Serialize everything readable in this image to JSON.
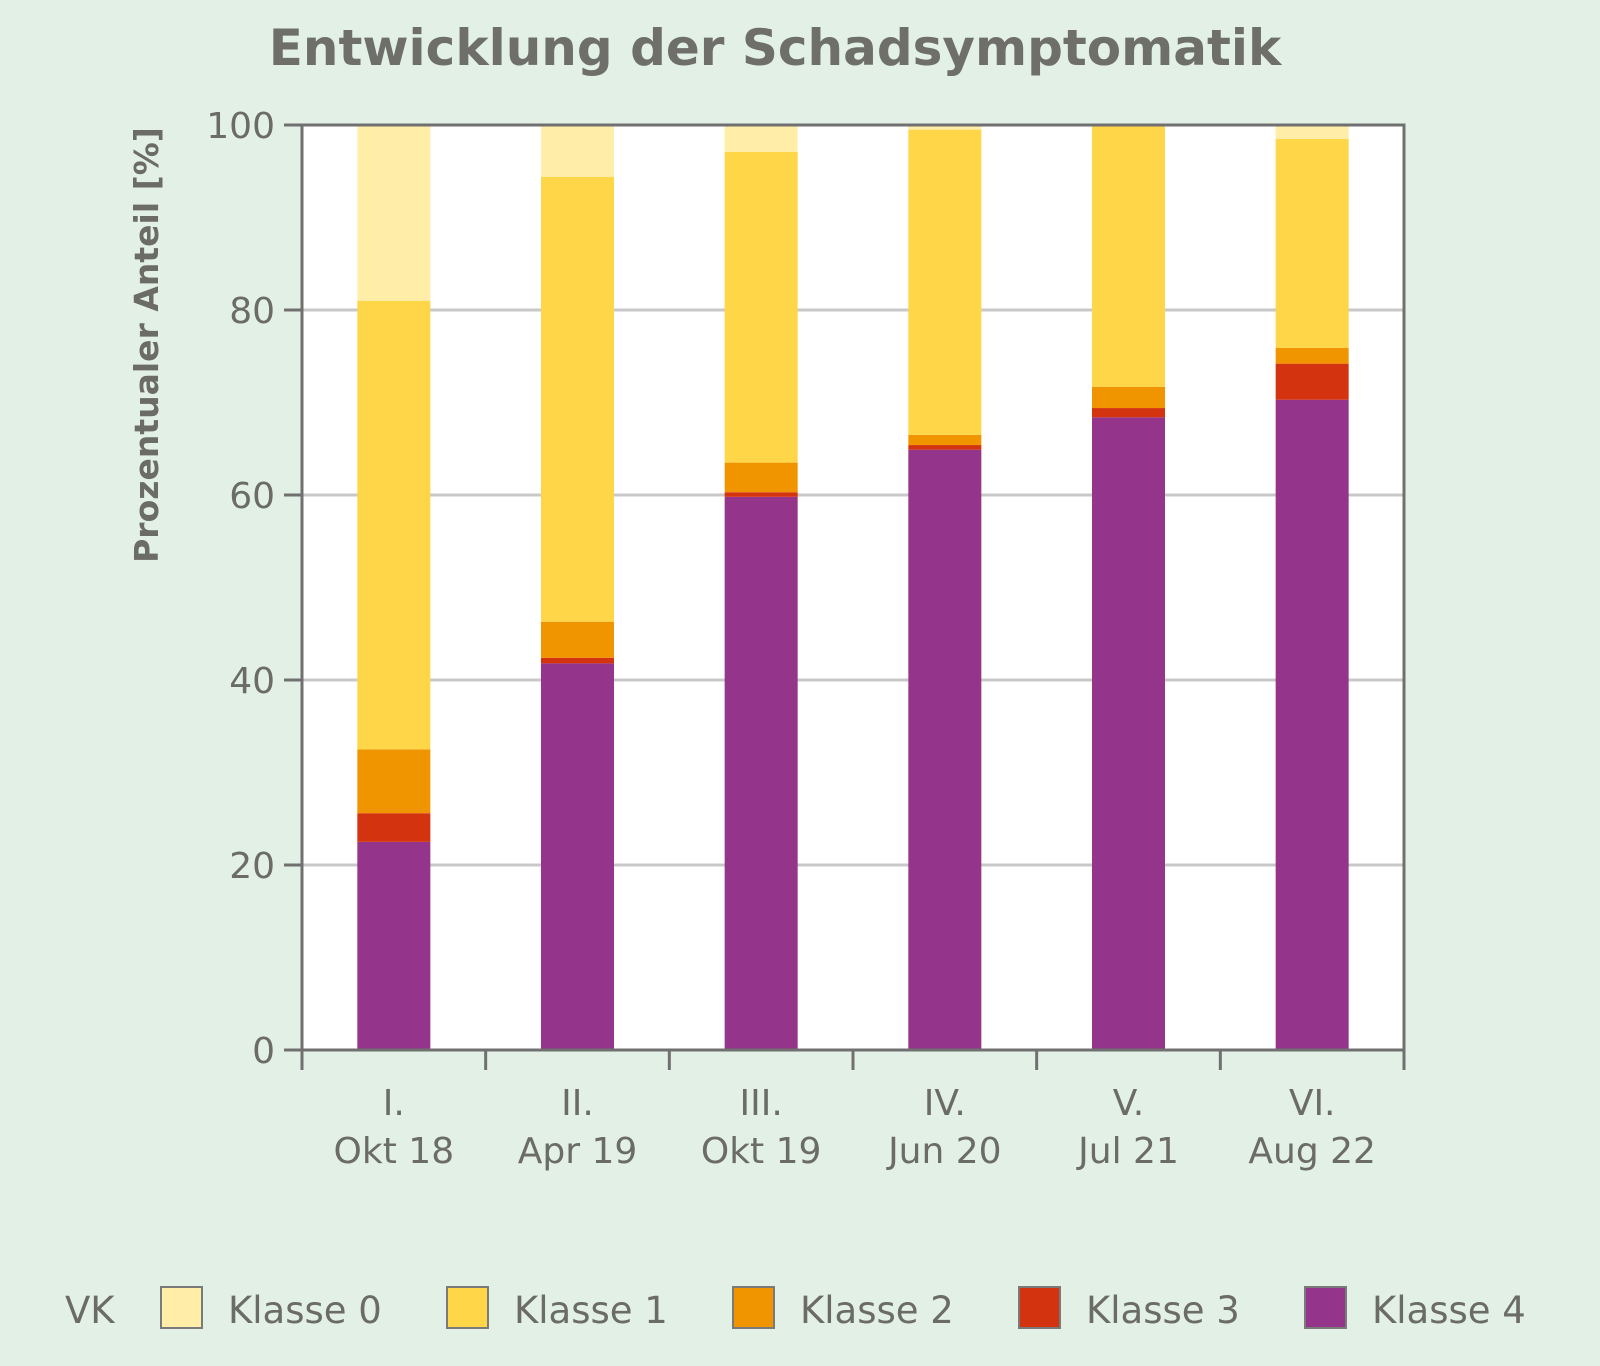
{
  "chart_data": {
    "type": "bar",
    "stacked": true,
    "title": "Entwicklung der Schadsymptomatik",
    "ylabel": "Prozentualer Anteil [%]",
    "xlabel": "",
    "ylim": [
      0,
      100
    ],
    "yticks": [
      0,
      20,
      40,
      60,
      80,
      100
    ],
    "grid": true,
    "categories": [
      [
        "I.",
        "Okt 18"
      ],
      [
        "II.",
        "Apr 19"
      ],
      [
        "III.",
        "Okt 19"
      ],
      [
        "IV.",
        "Jun 20"
      ],
      [
        "V.",
        "Jul 21"
      ],
      [
        "VI.",
        "Aug 22"
      ]
    ],
    "legend_title": "VK",
    "legend_position": "bottom",
    "series": [
      {
        "name": "Klasse 4",
        "color": "#94348a",
        "values": [
          22.5,
          41.8,
          59.8,
          64.9,
          68.4,
          70.3
        ]
      },
      {
        "name": "Klasse 3",
        "color": "#d4330f",
        "values": [
          3.1,
          0.6,
          0.5,
          0.5,
          1.0,
          3.9
        ]
      },
      {
        "name": "Klasse 2",
        "color": "#f09400",
        "values": [
          6.9,
          3.9,
          3.2,
          1.1,
          2.3,
          1.7
        ]
      },
      {
        "name": "Klasse 1",
        "color": "#fed647",
        "values": [
          48.5,
          48.1,
          33.6,
          33.0,
          28.3,
          22.6
        ]
      },
      {
        "name": "Klasse 0",
        "color": "#ffeda8",
        "values": [
          19.0,
          5.6,
          2.9,
          0.5,
          0.0,
          1.5
        ]
      }
    ],
    "legend_order": [
      "Klasse 0",
      "Klasse 1",
      "Klasse 2",
      "Klasse 3",
      "Klasse 4"
    ]
  }
}
